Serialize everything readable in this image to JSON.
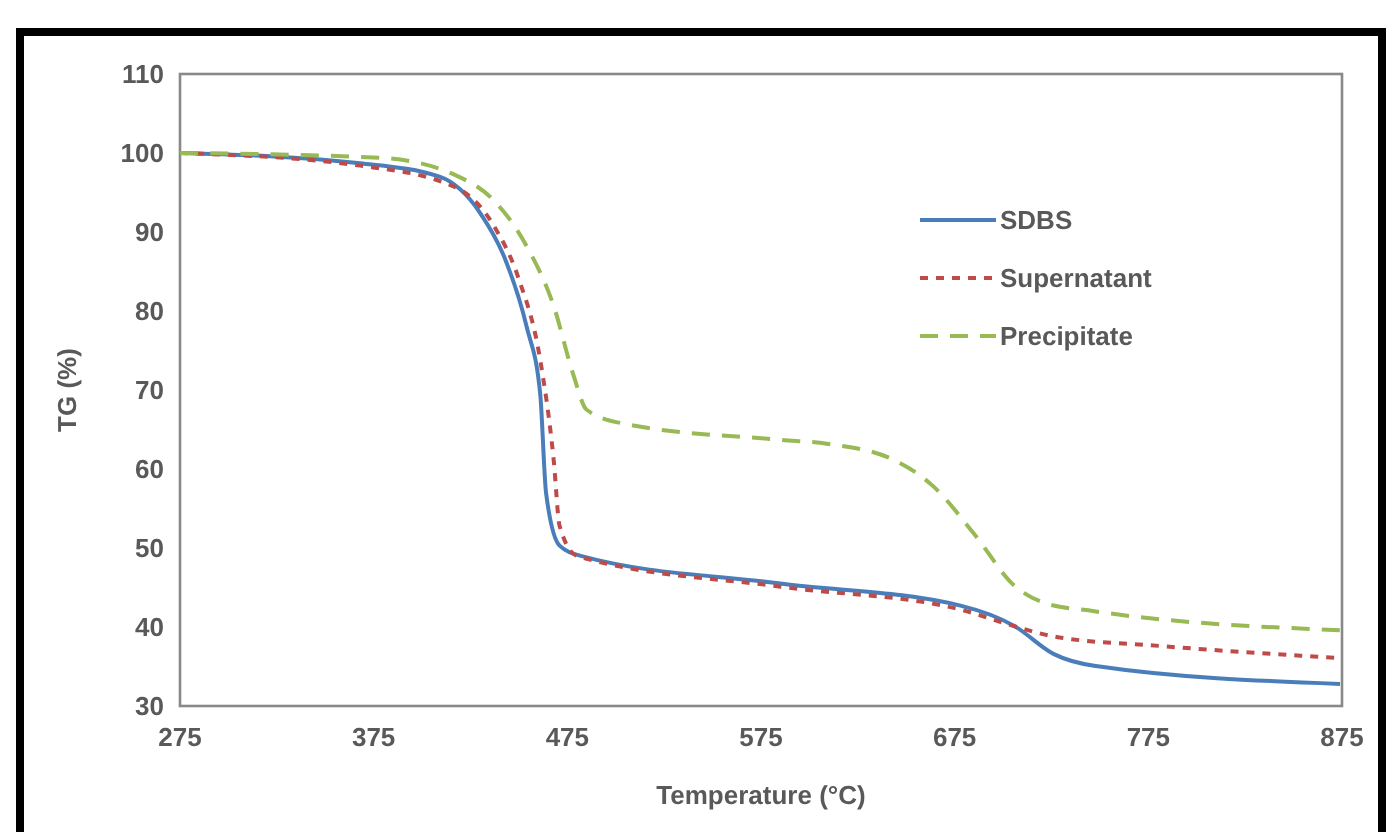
{
  "chart_data": {
    "type": "line",
    "xlabel": "Temperature (°C)",
    "ylabel": "TG (%)",
    "xlim": [
      275,
      875
    ],
    "xticks": [
      275,
      375,
      475,
      575,
      675,
      775,
      875
    ],
    "ylim": [
      30,
      110
    ],
    "yticks": [
      30,
      40,
      50,
      60,
      70,
      80,
      90,
      100,
      110
    ],
    "grid": false,
    "legend": "top right",
    "marker": "none",
    "series": [
      {
        "name": "SDBS",
        "color": "#4a7ebb",
        "line_style": "solid",
        "x": [
          275,
          368,
          409,
          430,
          443,
          454,
          461,
          464,
          471,
          482,
          585,
          678,
          706,
          726,
          747,
          874
        ],
        "values": [
          100,
          98.7,
          97,
          92.4,
          86.5,
          78,
          69.5,
          57,
          50.3,
          49,
          45.5,
          42.7,
          40.1,
          36.6,
          35.1,
          32.8
        ]
      },
      {
        "name": "Supernatant",
        "color": "#be4b48",
        "line_style": "dashed",
        "x": [
          275,
          368,
          416,
          437,
          450,
          461,
          468,
          471,
          480,
          585,
          678,
          706,
          726,
          781,
          871
        ],
        "values": [
          100,
          98.4,
          95.8,
          90.8,
          84,
          73.8,
          61,
          52.8,
          49,
          45.1,
          42.2,
          40.1,
          38.8,
          37.6,
          36.1
        ]
      },
      {
        "name": "Precipitate",
        "color": "#98b954",
        "line_style": "dashed",
        "x": [
          275,
          378,
          418,
          437,
          454,
          468,
          478,
          485,
          505,
          585,
          609,
          644,
          664,
          685,
          706,
          722,
          747,
          874
        ],
        "values": [
          100,
          99.4,
          97.1,
          94,
          88.2,
          80.6,
          72,
          67.5,
          65.7,
          63.7,
          63.2,
          61.1,
          57.8,
          51.8,
          45.2,
          43,
          42,
          39.6
        ]
      }
    ]
  }
}
